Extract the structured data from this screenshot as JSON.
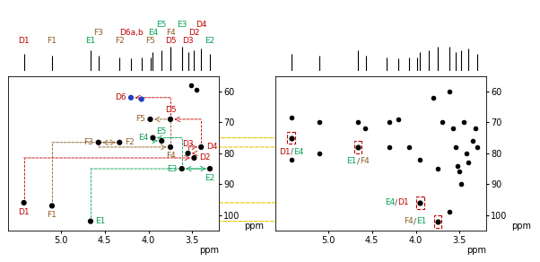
{
  "chart_data": [
    {
      "type": "scatter",
      "xlim": [
        5.6,
        3.2
      ],
      "xticks": [
        5.0,
        4.5,
        4.0,
        3.5
      ],
      "ylim": [
        105,
        55
      ],
      "yticks": [
        60,
        70,
        80,
        90,
        100
      ],
      "xlabel": "ppm",
      "ylabel": "ppm",
      "residue_colors": {
        "D": "#c00000",
        "E": "#00a050",
        "F": "#8b5a1e"
      },
      "spectrum": {
        "type": "stem",
        "ylim": [
          0,
          1
        ],
        "tick_labels": false,
        "color": "#000000",
        "x": [
          5.42,
          5.1,
          4.66,
          4.57,
          4.33,
          4.2,
          4.08,
          3.98,
          3.75,
          3.95,
          3.85,
          3.75,
          3.62,
          3.55,
          3.48,
          3.4,
          3.3
        ],
        "values": [
          0.25,
          0.22,
          0.3,
          0.22,
          0.2,
          0.18,
          0.2,
          0.2,
          0.32,
          0.28,
          0.3,
          0.35,
          0.35,
          0.28,
          0.3,
          0.33,
          0.25
        ],
        "labels": [
          "D1",
          "F1",
          "E1",
          "F3",
          "F2",
          "D6a,b",
          null,
          "F5",
          "D5",
          "E4",
          "E5",
          "F4",
          "E3",
          "D3",
          "D2",
          "D4",
          "E2"
        ]
      },
      "peaks": {
        "labels": [
          "D1",
          "F1",
          "E1",
          "F3",
          "F2",
          "D6",
          null,
          "F5",
          "D5",
          "E4",
          "E5",
          "F4",
          "E3",
          "D3",
          "D2",
          "D4",
          "E2"
        ],
        "x": [
          5.42,
          5.1,
          4.66,
          4.57,
          4.33,
          4.2,
          4.08,
          3.98,
          3.75,
          3.95,
          3.85,
          3.75,
          3.62,
          3.55,
          3.48,
          3.4,
          3.3
        ],
        "y": [
          96,
          97,
          102,
          76.5,
          76.5,
          62,
          62.5,
          69,
          69,
          75,
          76,
          78,
          85,
          80,
          81.5,
          78,
          85
        ],
        "colors": [
          "#000000",
          "#000000",
          "#000000",
          "#000000",
          "#000000",
          "#1f3fbf",
          "#1f3fbf",
          "#000000",
          "#000000",
          "#000000",
          "#000000",
          "#000000",
          "#000000",
          "#000000",
          "#000000",
          "#000000",
          "#000000"
        ]
      },
      "unlabeled_peaks": {
        "x": [
          3.52,
          3.45
        ],
        "y": [
          58,
          59.5
        ],
        "color": "#000000"
      }
    },
    {
      "type": "scatter",
      "xlim": [
        5.6,
        3.2
      ],
      "xticks": [
        5.0,
        4.5,
        4.0,
        3.5
      ],
      "ylim": [
        105,
        55
      ],
      "yticks": [
        60,
        70,
        80,
        90,
        100
      ],
      "xlabel": "ppm",
      "ylabel": "ppm",
      "spectrum": {
        "type": "stem",
        "ylim": [
          0,
          1
        ],
        "tick_labels": false,
        "color": "#000000",
        "x": [
          5.42,
          5.1,
          4.66,
          4.57,
          4.33,
          4.2,
          4.08,
          3.98,
          3.75,
          3.95,
          3.85,
          3.75,
          3.62,
          3.55,
          3.48,
          3.4,
          3.3
        ],
        "values": [
          0.25,
          0.22,
          0.3,
          0.22,
          0.2,
          0.18,
          0.2,
          0.2,
          0.32,
          0.28,
          0.3,
          0.35,
          0.35,
          0.28,
          0.3,
          0.33,
          0.25
        ]
      },
      "correlations": {
        "labels": [
          "D1/E4",
          "E1/F4",
          "E4/D1",
          "F4/E1"
        ],
        "x": [
          5.42,
          4.66,
          3.95,
          3.75
        ],
        "y": [
          75,
          78,
          96,
          102
        ]
      },
      "unlabeled_peaks": {
        "x": [
          5.42,
          5.42,
          5.1,
          5.1,
          4.66,
          4.58,
          4.3,
          4.3,
          4.2,
          4.08,
          3.95,
          3.62,
          3.8,
          3.75,
          3.7,
          3.62,
          3.58,
          3.55,
          3.52,
          3.5,
          3.48,
          3.45,
          3.42,
          3.4,
          3.35,
          3.32,
          3.3
        ],
        "y": [
          82,
          68.5,
          70,
          80,
          70,
          72,
          70,
          78,
          69,
          78,
          82,
          99,
          62,
          85,
          70,
          60,
          72,
          78,
          84,
          86,
          90,
          70,
          80,
          83,
          76,
          72,
          78
        ],
        "color": "#000000"
      }
    }
  ]
}
